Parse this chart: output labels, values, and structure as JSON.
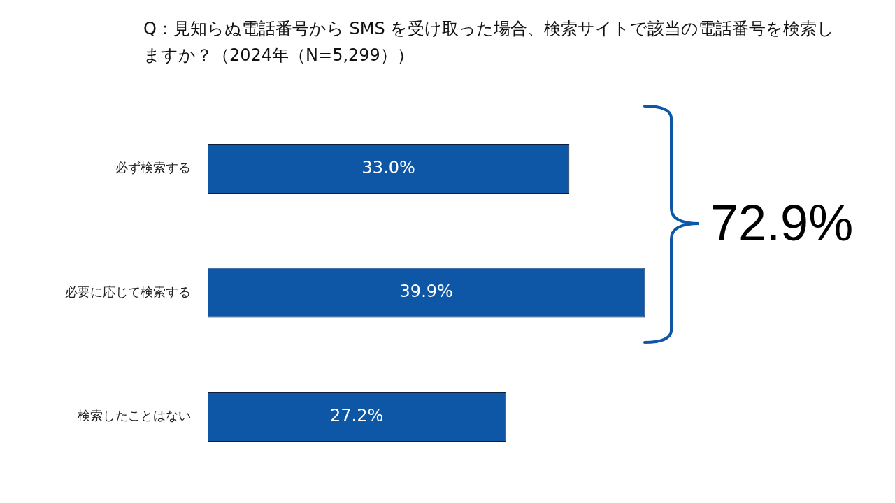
{
  "chart_data": {
    "type": "bar",
    "orientation": "horizontal",
    "title": "Q：見知らぬ電話番号から SMS を受け取った場合、検索サイトで該当の電話番号を検索しますか？（2024年（N=5,299））",
    "categories": [
      "必ず検索する",
      "必要に応じて検索する",
      "検索したことはない"
    ],
    "values": [
      33.0,
      39.9,
      27.2
    ],
    "value_labels": [
      "33.0%",
      "39.9%",
      "27.2%"
    ],
    "color": "#0d57a6",
    "tick_labels": "y",
    "legend": false,
    "annotations": [
      "72.9%"
    ]
  }
}
